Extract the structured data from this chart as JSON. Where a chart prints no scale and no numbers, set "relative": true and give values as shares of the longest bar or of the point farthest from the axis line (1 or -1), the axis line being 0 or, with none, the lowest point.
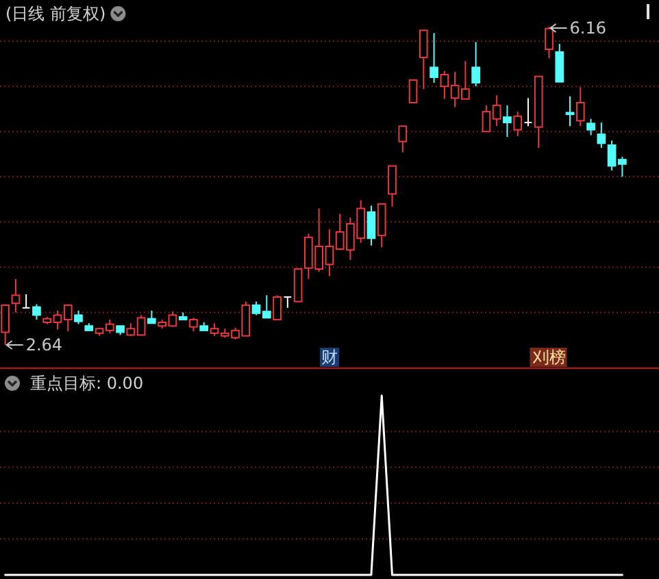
{
  "chart_data": [
    {
      "type": "candlestick",
      "title": "(日线 前复权)",
      "categories": [
        null,
        null,
        null,
        null,
        null,
        null,
        null,
        null,
        null,
        null,
        null,
        null,
        null,
        null,
        null,
        null,
        null,
        null,
        null,
        null,
        null,
        null,
        null,
        null,
        null,
        null,
        null,
        null,
        null,
        null,
        null,
        null,
        null,
        null,
        null,
        null,
        null,
        null,
        null,
        null,
        null,
        null,
        null,
        null,
        null,
        null,
        null,
        null,
        null,
        null,
        null,
        null,
        null,
        null,
        null,
        null,
        null,
        null,
        null,
        null
      ],
      "ohlc": [
        [
          2.78,
          3.09,
          2.64,
          3.08
        ],
        [
          3.1,
          3.37,
          3.0,
          3.19
        ],
        [
          3.05,
          3.2,
          3.05,
          3.05
        ],
        [
          3.06,
          3.09,
          2.92,
          2.97
        ],
        [
          2.89,
          2.95,
          2.87,
          2.93
        ],
        [
          2.89,
          3.02,
          2.81,
          2.97
        ],
        [
          2.92,
          3.09,
          2.79,
          3.08
        ],
        [
          2.97,
          3.02,
          2.87,
          2.9
        ],
        [
          2.85,
          2.88,
          2.8,
          2.8
        ],
        [
          2.77,
          2.83,
          2.74,
          2.82
        ],
        [
          2.8,
          2.92,
          2.77,
          2.87
        ],
        [
          2.85,
          2.85,
          2.75,
          2.78
        ],
        [
          2.75,
          2.88,
          2.74,
          2.82
        ],
        [
          2.75,
          2.97,
          2.74,
          2.94
        ],
        [
          2.93,
          3.02,
          2.88,
          2.88
        ],
        [
          2.85,
          2.92,
          2.82,
          2.89
        ],
        [
          2.85,
          3.01,
          2.84,
          2.97
        ],
        [
          2.95,
          3.0,
          2.92,
          2.92
        ],
        [
          2.84,
          2.94,
          2.79,
          2.92
        ],
        [
          2.85,
          2.89,
          2.8,
          2.8
        ],
        [
          2.77,
          2.88,
          2.74,
          2.82
        ],
        [
          2.74,
          2.82,
          2.72,
          2.77
        ],
        [
          2.72,
          2.83,
          2.7,
          2.8
        ],
        [
          2.74,
          3.12,
          2.74,
          3.08
        ],
        [
          3.08,
          3.12,
          2.97,
          2.99
        ],
        [
          3.01,
          3.19,
          2.94,
          2.94
        ],
        [
          2.92,
          3.19,
          2.92,
          3.17
        ],
        [
          3.17,
          3.17,
          3.05,
          3.17
        ],
        [
          3.12,
          3.49,
          3.11,
          3.48
        ],
        [
          3.49,
          3.87,
          3.37,
          3.83
        ],
        [
          3.48,
          4.15,
          3.45,
          3.73
        ],
        [
          3.53,
          3.92,
          3.4,
          3.73
        ],
        [
          3.7,
          4.09,
          3.69,
          3.89
        ],
        [
          3.69,
          4.05,
          3.58,
          3.98
        ],
        [
          3.82,
          4.24,
          3.77,
          4.15
        ],
        [
          4.11,
          4.18,
          3.74,
          3.82
        ],
        [
          3.85,
          4.2,
          3.72,
          4.2
        ],
        [
          4.31,
          4.62,
          4.17,
          4.62
        ],
        [
          4.89,
          5.06,
          4.77,
          5.06
        ],
        [
          5.32,
          5.57,
          5.32,
          5.57
        ],
        [
          5.82,
          6.12,
          5.47,
          6.12
        ],
        [
          5.71,
          6.09,
          5.54,
          5.6
        ],
        [
          5.5,
          5.67,
          5.36,
          5.63
        ],
        [
          5.37,
          5.66,
          5.27,
          5.51
        ],
        [
          5.36,
          5.78,
          5.36,
          5.47
        ],
        [
          5.71,
          5.99,
          5.5,
          5.54
        ],
        [
          5.0,
          5.29,
          5.0,
          5.22
        ],
        [
          5.14,
          5.4,
          5.06,
          5.29
        ],
        [
          5.16,
          5.29,
          4.94,
          5.1
        ],
        [
          5.02,
          5.22,
          4.95,
          5.17
        ],
        [
          5.1,
          5.37,
          5.06,
          5.1
        ],
        [
          5.05,
          5.61,
          4.82,
          5.61
        ],
        [
          5.91,
          6.16,
          5.81,
          6.14
        ],
        [
          5.88,
          5.97,
          5.55,
          5.55
        ],
        [
          5.21,
          5.39,
          5.06,
          5.19
        ],
        [
          5.12,
          5.49,
          5.06,
          5.32
        ],
        [
          5.09,
          5.14,
          4.96,
          5.02
        ],
        [
          4.97,
          5.1,
          4.82,
          4.87
        ],
        [
          4.85,
          4.9,
          4.57,
          4.62
        ],
        [
          4.69,
          4.72,
          4.5,
          4.64
        ]
      ],
      "colors": [
        "#e83a3a",
        "#e83a3a",
        "#ffffff",
        "#54fcfc",
        "#e83a3a",
        "#e83a3a",
        "#e83a3a",
        "#54fcfc",
        "#54fcfc",
        "#e83a3a",
        "#e83a3a",
        "#54fcfc",
        "#e83a3a",
        "#e83a3a",
        "#54fcfc",
        "#e83a3a",
        "#e83a3a",
        "#54fcfc",
        "#e83a3a",
        "#54fcfc",
        "#e83a3a",
        "#e83a3a",
        "#e83a3a",
        "#e83a3a",
        "#54fcfc",
        "#54fcfc",
        "#e83a3a",
        "#ffffff",
        "#e83a3a",
        "#e83a3a",
        "#e83a3a",
        "#e83a3a",
        "#e83a3a",
        "#e83a3a",
        "#e83a3a",
        "#54fcfc",
        "#e83a3a",
        "#e83a3a",
        "#e83a3a",
        "#e83a3a",
        "#e83a3a",
        "#54fcfc",
        "#e83a3a",
        "#e83a3a",
        "#e83a3a",
        "#54fcfc",
        "#e83a3a",
        "#e83a3a",
        "#54fcfc",
        "#e83a3a",
        "#ffffff",
        "#e83a3a",
        "#e83a3a",
        "#54fcfc",
        "#54fcfc",
        "#e83a3a",
        "#54fcfc",
        "#54fcfc",
        "#54fcfc",
        "#54fcfc"
      ],
      "yticks": [
        {
          "value": 3.0,
          "label": null
        },
        {
          "value": 3.5,
          "label": null
        },
        {
          "value": 4.0,
          "label": null
        },
        {
          "value": 4.5,
          "label": null
        },
        {
          "value": 5.0,
          "label": null
        },
        {
          "value": 5.5,
          "label": null
        },
        {
          "value": 6.0,
          "label": null
        }
      ],
      "grid": true,
      "annotations": [
        "2.64",
        "6.16",
        "财",
        "刈榜"
      ]
    },
    {
      "type": "line",
      "title": "重点目标: 0.00",
      "categories": [
        null,
        null,
        null,
        null,
        null,
        null,
        null,
        null,
        null,
        null,
        null,
        null,
        null,
        null,
        null,
        null,
        null,
        null,
        null,
        null,
        null,
        null,
        null,
        null,
        null,
        null,
        null,
        null,
        null,
        null,
        null,
        null,
        null,
        null,
        null,
        null,
        null,
        null,
        null,
        null,
        null,
        null,
        null,
        null,
        null,
        null,
        null,
        null,
        null,
        null,
        null,
        null,
        null,
        null,
        null,
        null,
        null,
        null,
        null,
        null
      ],
      "values": [
        0,
        0,
        0,
        0,
        0,
        0,
        0,
        0,
        0,
        0,
        0,
        0,
        0,
        0,
        0,
        0,
        0,
        0,
        0,
        0,
        0,
        0,
        0,
        0,
        0,
        0,
        0,
        0,
        0,
        0,
        0,
        0,
        0,
        0,
        0,
        0,
        1,
        0,
        0,
        0,
        0,
        0,
        0,
        0,
        0,
        0,
        0,
        0,
        0,
        0,
        0,
        0,
        0,
        0,
        0,
        0,
        0,
        0,
        0,
        0
      ],
      "relative": true,
      "color": "#ffffff",
      "ref_lines": [
        {
          "axis": "y",
          "value": 0.2,
          "color": "#7a1c1c",
          "line_style": "dotted"
        },
        {
          "axis": "y",
          "value": 0.4,
          "color": "#7a1c1c",
          "line_style": "dotted"
        },
        {
          "axis": "y",
          "value": 0.6,
          "color": "#7a1c1c",
          "line_style": "dotted"
        },
        {
          "axis": "y",
          "value": 0.8,
          "color": "#7a1c1c",
          "line_style": "dotted"
        }
      ]
    }
  ]
}
